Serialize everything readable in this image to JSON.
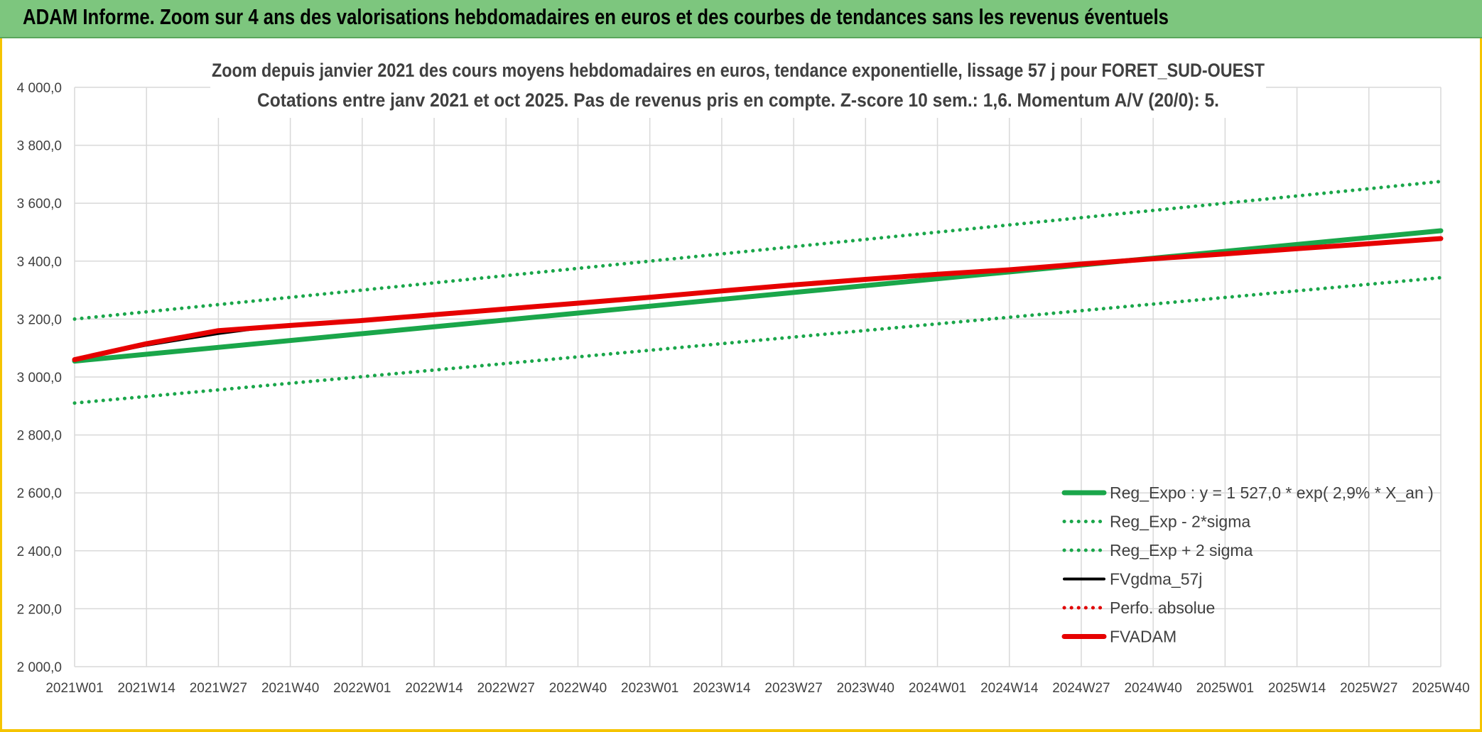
{
  "banner": {
    "title": "ADAM Informe. Zoom sur 4 ans des valorisations hebdomadaires en euros et des courbes de tendances sans les revenus éventuels",
    "color": "#7dc67e"
  },
  "chart_data": {
    "type": "line",
    "title_line1": "Zoom depuis janvier 2021 des cours moyens hebdomadaires en euros, tendance exponentielle, lissage 57 j pour FORET_SUD-OUEST",
    "title_line2": "Cotations entre janv 2021 et oct 2025. Pas de revenus pris en compte. Z-score 10 sem.: 1,6. Momentum A/V (20/0): 5.",
    "x_tick_labels": [
      "2021W01",
      "2021W14",
      "2021W27",
      "2021W40",
      "2022W01",
      "2022W14",
      "2022W27",
      "2022W40",
      "2023W01",
      "2023W14",
      "2023W27",
      "2023W40",
      "2024W01",
      "2024W14",
      "2024W27",
      "2024W40",
      "2025W01",
      "2025W14",
      "2025W27",
      "2025W40"
    ],
    "y_tick_labels": [
      "2 000,0",
      "2 200,0",
      "2 400,0",
      "2 600,0",
      "2 800,0",
      "3 000,0",
      "3 200,0",
      "3 400,0",
      "3 600,0",
      "3 800,0",
      "4 000,0"
    ],
    "ylim": [
      2000,
      4000
    ],
    "y_step": 200,
    "grid": true,
    "legend_position": "bottom-right",
    "series": [
      {
        "name": "Reg_Expo : y = 1 527,0 * exp( 2,9% *  X_an )",
        "color": "#1aa64a",
        "style": "solid-thick",
        "points": [
          [
            "2021W01",
            3055
          ],
          [
            "2025W40",
            3505
          ]
        ]
      },
      {
        "name": "Reg_Exp - 2*sigma",
        "color": "#1aa64a",
        "style": "dotted",
        "points": [
          [
            "2021W01",
            2910
          ],
          [
            "2025W40",
            3343
          ]
        ]
      },
      {
        "name": "Reg_Exp + 2 sigma",
        "color": "#1aa64a",
        "style": "dotted",
        "points": [
          [
            "2021W01",
            3200
          ],
          [
            "2025W40",
            3675
          ]
        ]
      },
      {
        "name": "FVgdma_57j",
        "color": "#000000",
        "style": "solid-thin",
        "points": [
          [
            "2021W01",
            3060
          ],
          [
            "2021W14",
            3110
          ],
          [
            "2021W27",
            3150
          ],
          [
            "2021W33",
            3165
          ]
        ]
      },
      {
        "name": "Perfo. absolue",
        "color": "#e00000",
        "style": "dotted",
        "points": []
      },
      {
        "name": "FVADAM",
        "color": "#e60000",
        "style": "solid-thick",
        "points": [
          [
            "2021W01",
            3060
          ],
          [
            "2021W14",
            3115
          ],
          [
            "2021W27",
            3160
          ],
          [
            "2021W40",
            3178
          ],
          [
            "2022W01",
            3195
          ],
          [
            "2022W14",
            3215
          ],
          [
            "2022W27",
            3235
          ],
          [
            "2022W40",
            3255
          ],
          [
            "2023W01",
            3275
          ],
          [
            "2023W14",
            3297
          ],
          [
            "2023W27",
            3318
          ],
          [
            "2023W40",
            3337
          ],
          [
            "2024W01",
            3355
          ],
          [
            "2024W14",
            3370
          ],
          [
            "2024W27",
            3390
          ],
          [
            "2024W40",
            3408
          ],
          [
            "2025W01",
            3425
          ],
          [
            "2025W14",
            3443
          ],
          [
            "2025W27",
            3460
          ],
          [
            "2025W40",
            3478
          ]
        ]
      }
    ]
  }
}
